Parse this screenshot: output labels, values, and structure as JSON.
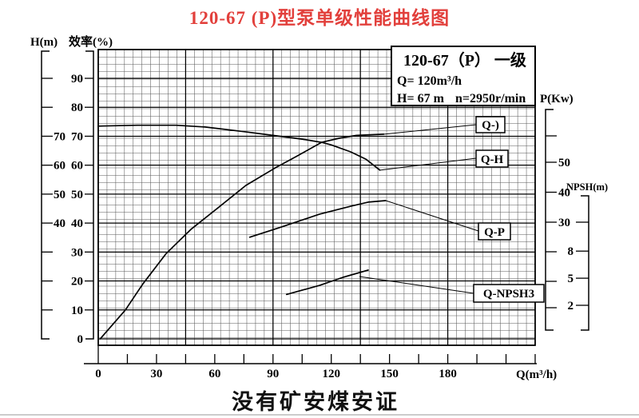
{
  "title": "120-67 (P)型泵单级性能曲线图",
  "footer": {
    "caption": "没有矿安煤安证"
  },
  "colors": {
    "title_red": "#e2403c",
    "curve_black": "#000000",
    "grid_minor": "#5a5a5a",
    "grid_major": "#000000",
    "bottom_rule": "#cccccc"
  },
  "info_box": {
    "line1": "120-67（P） 一级",
    "q_line": "Q= 120m³/h",
    "h_line": "H= 67 m",
    "n_line": "n=2950r/min"
  },
  "axes": {
    "h": {
      "title": "H(m)",
      "tick_labels": [
        "70",
        "60",
        "50",
        "40"
      ]
    },
    "efficiency": {
      "title": "效率(%)",
      "tick_labels": [
        "90",
        "80",
        "70",
        "60",
        "50",
        "40",
        "30",
        "20",
        "10",
        "0"
      ]
    },
    "p": {
      "title": "P(Kw)",
      "tick_labels": [
        "50",
        "40",
        "30"
      ]
    },
    "npsh": {
      "title": "NPSH(m)",
      "tick_labels": [
        "8",
        "5",
        "2"
      ]
    },
    "q": {
      "title": "Q(m³/h)",
      "tick_labels": [
        "0",
        "30",
        "60",
        "90",
        "120",
        "150",
        "180"
      ]
    }
  },
  "curve_labels": {
    "eta": "Q-)",
    "qh": "Q-H",
    "qp": "Q-P",
    "qnpsh": "Q-NPSH3"
  },
  "chart_data": {
    "type": "line",
    "title": "120-67 (P)型泵单级性能曲线图",
    "xlabel": "Q(m³/h)",
    "x_range": [
      0,
      225
    ],
    "grid": "on",
    "y_axes": {
      "效率(%)": {
        "range": [
          0,
          100
        ],
        "labeled": [
          90,
          80,
          70,
          60,
          50,
          40,
          30,
          20,
          10,
          0
        ]
      },
      "H(m)": {
        "labeled": [
          70,
          60,
          50,
          40
        ]
      },
      "P(Kw)": {
        "labeled": [
          50,
          40,
          30
        ]
      },
      "NPSH(m)": {
        "labeled": [
          8,
          5,
          2
        ]
      }
    },
    "rated_point": {
      "Q": "120m³/h",
      "H": "67 m",
      "n": "2950r/min",
      "stage": "一级"
    },
    "series": [
      {
        "name": "Q-H",
        "y_axis": "H(m)",
        "points": [
          [
            0,
            73.5
          ],
          [
            20,
            73.8
          ],
          [
            40,
            73.8
          ],
          [
            55,
            73.2
          ],
          [
            75,
            71.6
          ],
          [
            90,
            70.3
          ],
          [
            105,
            69.0
          ],
          [
            115,
            67.9
          ],
          [
            120,
            67.0
          ],
          [
            130,
            64.6
          ],
          [
            138,
            62.0
          ],
          [
            145,
            58.3
          ]
        ]
      },
      {
        "name": "Q-)",
        "y_axis": "效率(%)",
        "points": [
          [
            1,
            0
          ],
          [
            14,
            10
          ],
          [
            23,
            19
          ],
          [
            35,
            29.5
          ],
          [
            48,
            38
          ],
          [
            63,
            46
          ],
          [
            76,
            53
          ],
          [
            91,
            59
          ],
          [
            102,
            63
          ],
          [
            115,
            67.9
          ],
          [
            124,
            69.3
          ],
          [
            133,
            70.3
          ],
          [
            147,
            70.7
          ]
        ]
      },
      {
        "name": "Q-P",
        "y_axis": "P(Kw)",
        "points": [
          [
            78,
            25
          ],
          [
            93,
            28.1
          ],
          [
            114,
            32.7
          ],
          [
            130,
            35.3
          ],
          [
            139,
            36.7
          ],
          [
            148,
            37.2
          ]
        ]
      },
      {
        "name": "Q-NPSH3",
        "y_axis": "NPSH(m)",
        "points": [
          [
            97,
            3.2
          ],
          [
            114,
            4.2
          ],
          [
            126,
            5.1
          ],
          [
            139,
            5.9
          ]
        ]
      }
    ]
  }
}
